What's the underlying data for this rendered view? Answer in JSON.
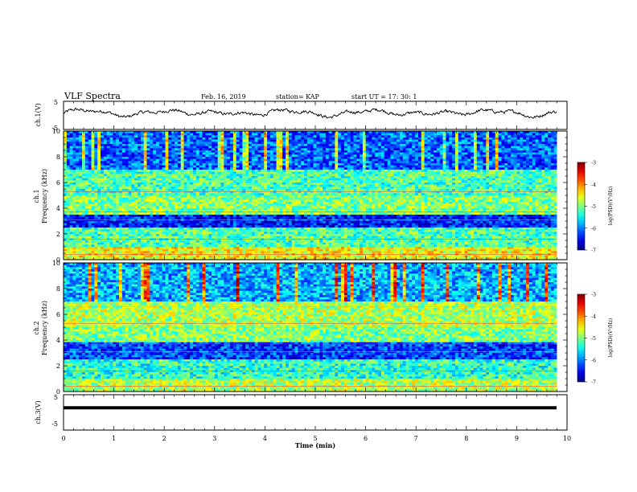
{
  "header": {
    "title": "VLF Spectra",
    "date": "Feb. 16, 2019",
    "station": "station= KAP",
    "start": "start  UT =    17: 30: 1"
  },
  "chart_data": [
    {
      "type": "line",
      "ylabel": "ch.1(V)",
      "ylim": [
        -5,
        5
      ],
      "yticks": [
        "5",
        "-5"
      ],
      "xlim": [
        0,
        10
      ],
      "description_series": "noisy voltage trace fluctuating around ~0 to +2 V across 0-9.8 min"
    },
    {
      "type": "heatmap",
      "ylabel": "ch.1\nFrequency  (kHz)",
      "ylabel_lines": [
        "ch.1",
        "Frequency  (kHz)"
      ],
      "ylim": [
        0,
        10
      ],
      "yticks": [
        "0",
        "2",
        "4",
        "6",
        "8",
        "10"
      ],
      "xlim": [
        0,
        9.8
      ],
      "colorbar": {
        "label": "log(PSD)(V²/Hz)",
        "range": [
          -7,
          -3
        ],
        "ticks": [
          "-3",
          "-4",
          "-5",
          "-6",
          "-7"
        ]
      }
    },
    {
      "type": "heatmap",
      "ylabel_lines": [
        "ch.2",
        "Frequency  (kHz)"
      ],
      "ylim": [
        0,
        10
      ],
      "yticks": [
        "0",
        "2",
        "4",
        "6",
        "8",
        "10"
      ],
      "xlim": [
        0,
        9.8
      ],
      "colorbar": {
        "label": "log(PSD)(V²/Hz)",
        "range": [
          -7,
          -3
        ],
        "ticks": [
          "-3",
          "-4",
          "-5",
          "-6",
          "-7"
        ]
      }
    },
    {
      "type": "line",
      "ylabel": "ch.3(V)",
      "ylim": [
        -5,
        5
      ],
      "yticks": [
        "5",
        "-5"
      ],
      "xlim": [
        0,
        10
      ],
      "constant_value": 1.3
    }
  ],
  "xaxis": {
    "label": "Time  (min)",
    "ticks": [
      "0",
      "1",
      "2",
      "3",
      "4",
      "5",
      "6",
      "7",
      "8",
      "9",
      "10"
    ],
    "range": [
      0,
      10
    ]
  },
  "colors": {
    "low": "#00008b",
    "mid": "#00c8ff",
    "high": "#ff0000"
  }
}
